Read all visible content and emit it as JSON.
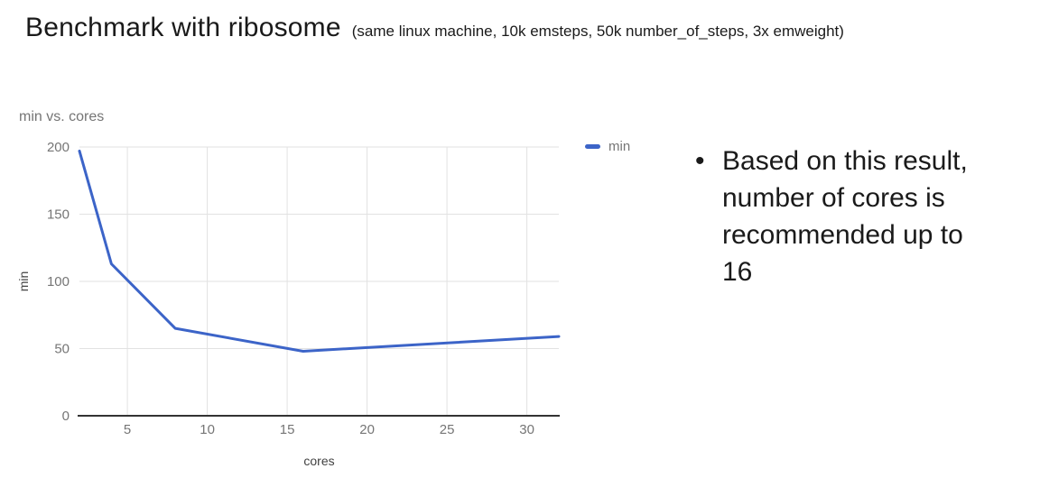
{
  "header": {
    "title": "Benchmark with ribosome",
    "subtitle": "(same linux machine, 10k emsteps, 50k number_of_steps, 3x emweight)"
  },
  "chart_data": {
    "type": "line",
    "title": "min vs. cores",
    "xlabel": "cores",
    "ylabel": "min",
    "xlim": [
      2,
      32
    ],
    "ylim": [
      0,
      200
    ],
    "xticks": [
      5,
      10,
      15,
      20,
      25,
      30
    ],
    "yticks": [
      0,
      50,
      100,
      150,
      200
    ],
    "grid": true,
    "legend_position": "top-right",
    "series": [
      {
        "name": "min",
        "color": "#3c64c8",
        "points": [
          [
            2,
            197
          ],
          [
            4,
            113
          ],
          [
            8,
            65
          ],
          [
            16,
            48
          ],
          [
            32,
            59
          ]
        ]
      }
    ],
    "colors": {
      "grid": "#e2e2e2",
      "axis": "#333333",
      "tick_label": "#757575",
      "axis_label": "#424242",
      "title": "#757575"
    }
  },
  "notes": {
    "bullet": "•",
    "items": [
      "Based on this result, number of cores is recommended up to 16"
    ]
  }
}
